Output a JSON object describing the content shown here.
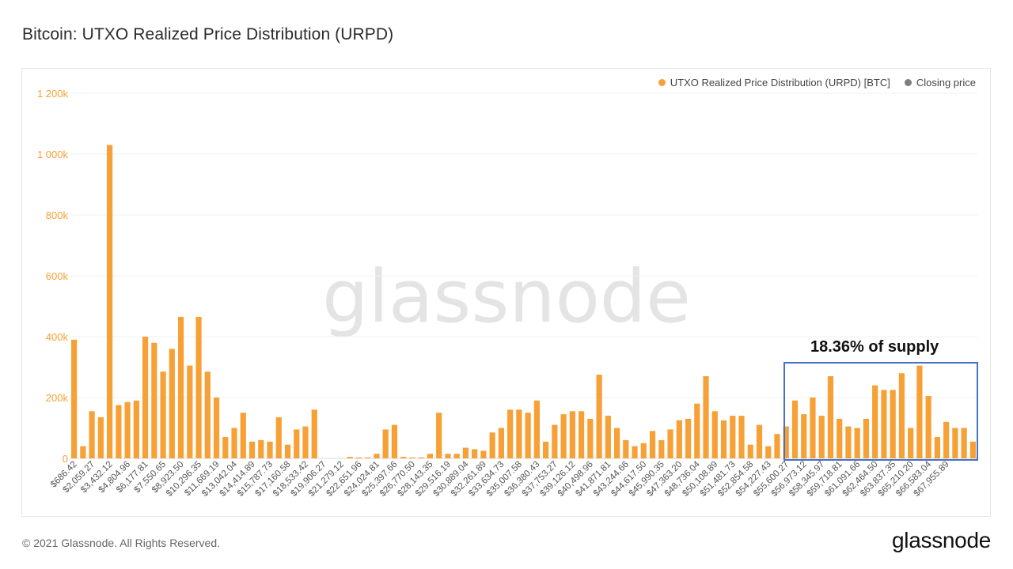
{
  "page": {
    "title": "Bitcoin: UTXO Realized Price Distribution (URPD)",
    "copyright": "© 2021 Glassnode. All Rights Reserved.",
    "logo": "glassnode",
    "watermark": "glassnode"
  },
  "legend": [
    {
      "label": "UTXO Realized Price Distribution (URPD) [BTC]",
      "color": "#f7a035"
    },
    {
      "label": "Closing price",
      "color": "#7f7f7f"
    }
  ],
  "annotation": {
    "text": "18.36% of supply",
    "box_color": "#4472c4",
    "range_start": "$54,227.43",
    "range_end": "$67,955.89"
  },
  "chart_data": {
    "type": "bar",
    "title": "Bitcoin: UTXO Realized Price Distribution (URPD)",
    "xlabel": "",
    "ylabel": "",
    "ylim": [
      0,
      1200000
    ],
    "y_ticks": [
      0,
      200000,
      400000,
      600000,
      800000,
      1000000,
      1200000
    ],
    "y_tick_labels": [
      "0",
      "200k",
      "400k",
      "600k",
      "800k",
      "1 000k",
      "1 200k"
    ],
    "grid": true,
    "legend_position": "top-right",
    "bar_color": "#f7a035",
    "closing_price_color": "#7f7f7f",
    "closing_price_index": 125,
    "x_tick_labels": [
      "$686.42",
      "$2,059.27",
      "$3,432.12",
      "$4,804.96",
      "$6,177.81",
      "$7,550.65",
      "$8,923.50",
      "$10,296.35",
      "$11,669.19",
      "$13,042.04",
      "$14,414.89",
      "$15,787.73",
      "$17,160.58",
      "$18,533.42",
      "$19,906.27",
      "$21,279.12",
      "$22,651.96",
      "$24,024.81",
      "$25,397.66",
      "$26,770.50",
      "$28,143.35",
      "$29,516.19",
      "$30,889.04",
      "$32,261.89",
      "$33,634.73",
      "$35,007.58",
      "$36,380.43",
      "$37,753.27",
      "$39,126.12",
      "$40,498.96",
      "$41,871.81",
      "$43,244.66",
      "$44,617.50",
      "$45,990.35",
      "$47,363.20",
      "$48,736.04",
      "$50,108.89",
      "$51,481.73",
      "$52,854.58",
      "$54,227.43",
      "$55,600.27",
      "$56,973.12",
      "$58,345.97",
      "$59,718.81",
      "$61,091.66",
      "$62,464.50",
      "$63,837.35",
      "$65,210.20",
      "$66,583.04",
      "$67,955.89"
    ],
    "series": [
      {
        "name": "UTXO Realized Price Distribution (URPD) [BTC]",
        "values": [
          390000,
          40000,
          155000,
          135000,
          1030000,
          175000,
          185000,
          190000,
          400000,
          380000,
          285000,
          360000,
          465000,
          305000,
          465000,
          285000,
          200000,
          70000,
          100000,
          150000,
          55000,
          60000,
          55000,
          135000,
          45000,
          95000,
          105000,
          160000,
          0,
          0,
          0,
          5000,
          3000,
          3000,
          15000,
          95000,
          110000,
          5000,
          3000,
          3000,
          15000,
          150000,
          15000,
          15000,
          35000,
          30000,
          25000,
          85000,
          100000,
          160000,
          160000,
          150000,
          190000,
          55000,
          110000,
          145000,
          155000,
          155000,
          130000,
          275000,
          140000,
          100000,
          60000,
          40000,
          50000,
          90000,
          60000,
          95000,
          125000,
          130000,
          180000,
          270000,
          155000,
          125000,
          140000,
          140000,
          45000,
          110000,
          40000,
          80000,
          105000,
          190000,
          145000,
          200000,
          140000,
          270000,
          130000,
          105000,
          100000,
          130000,
          240000,
          225000,
          225000,
          280000,
          100000,
          305000,
          205000,
          70000,
          120000,
          100000,
          100000,
          55000
        ]
      }
    ]
  }
}
